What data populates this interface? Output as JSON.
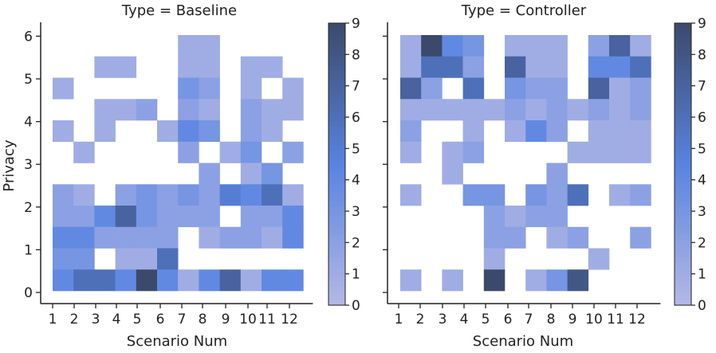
{
  "figure": {
    "ylabel": "Privacy",
    "colormap": {
      "low": "#b3b9e5",
      "mid": "#5883e0",
      "high": "#3b4a6b"
    },
    "cell_nan_color": "#ffffff",
    "axis_color": "#222222"
  },
  "chart_data": [
    {
      "type": "heatmap",
      "title": "Type = Baseline",
      "xlabel": "Scenario Num",
      "ylabel": "Privacy",
      "x_ticks": [
        "1",
        "2",
        "3",
        "4",
        "5",
        "6",
        "7",
        "8",
        "9",
        "10",
        "11",
        "12"
      ],
      "y_ticks": [
        "0",
        "1",
        "2",
        "3",
        "4",
        "5",
        "6"
      ],
      "x_range": [
        1,
        12
      ],
      "y_range": [
        0,
        6.3
      ],
      "colorbar": {
        "min": 0,
        "max": 9,
        "ticks": [
          "0",
          "1",
          "2",
          "3",
          "4",
          "5",
          "6",
          "7",
          "8",
          "9"
        ]
      },
      "note": "Counts binned into ~0.53-wide Privacy rows (12 rows, 0 to 6.3); rows listed top to bottom, columns Scenario 1-12; null = empty bin",
      "grid": [
        [
          null,
          null,
          null,
          null,
          null,
          null,
          1,
          1,
          null,
          null,
          null,
          null
        ],
        [
          null,
          null,
          1,
          1,
          null,
          null,
          1,
          1,
          null,
          1,
          1,
          null
        ],
        [
          1,
          null,
          null,
          null,
          null,
          null,
          3,
          2,
          null,
          1,
          null,
          1
        ],
        [
          null,
          null,
          1,
          1,
          2,
          null,
          2,
          1,
          null,
          2,
          1,
          1
        ],
        [
          1,
          null,
          1,
          null,
          null,
          1,
          4,
          3,
          null,
          2,
          1,
          null
        ],
        [
          null,
          1,
          null,
          null,
          null,
          null,
          2,
          null,
          1,
          3,
          null,
          2
        ],
        [
          null,
          null,
          null,
          null,
          null,
          null,
          null,
          2,
          null,
          1,
          3,
          null
        ],
        [
          2,
          1,
          null,
          2,
          3,
          2,
          3,
          2,
          5,
          4,
          6,
          1
        ],
        [
          2,
          2,
          4,
          7,
          3,
          2,
          2,
          2,
          null,
          2,
          2,
          4
        ],
        [
          4,
          4,
          2,
          2,
          2,
          2,
          null,
          1,
          2,
          2,
          1,
          4
        ],
        [
          3,
          3,
          null,
          1,
          1,
          6,
          null,
          null,
          null,
          null,
          null,
          null
        ],
        [
          4,
          6,
          6,
          4,
          9,
          4,
          1,
          4,
          7,
          1,
          4,
          4
        ]
      ]
    },
    {
      "type": "heatmap",
      "title": "Type = Controller",
      "xlabel": "Scenario Num",
      "ylabel": "",
      "x_ticks": [
        "1",
        "2",
        "3",
        "4",
        "5",
        "6",
        "7",
        "8",
        "9",
        "10",
        "11",
        "12"
      ],
      "y_ticks": [
        "0",
        "1",
        "2",
        "3",
        "4",
        "5",
        "6"
      ],
      "x_range": [
        1,
        12
      ],
      "y_range": [
        0,
        6.3
      ],
      "colorbar": {
        "min": 0,
        "max": 9,
        "ticks": [
          "0",
          "1",
          "2",
          "3",
          "4",
          "5",
          "6",
          "7",
          "8",
          "9"
        ]
      },
      "note": "Same binning as Baseline panel; tick labels on the y axis are hidden (shared y)",
      "grid": [
        [
          1,
          9,
          4,
          3,
          null,
          1,
          1,
          1,
          null,
          2,
          7,
          1
        ],
        [
          1,
          6,
          6,
          2,
          null,
          7,
          1,
          1,
          null,
          4,
          4,
          6
        ],
        [
          7,
          2,
          null,
          6,
          null,
          3,
          2,
          2,
          null,
          7,
          1,
          2
        ],
        [
          1,
          1,
          1,
          1,
          1,
          2,
          1,
          2,
          1,
          2,
          1,
          2
        ],
        [
          2,
          null,
          null,
          1,
          null,
          1,
          4,
          2,
          null,
          1,
          1,
          1
        ],
        [
          1,
          null,
          1,
          2,
          null,
          null,
          null,
          null,
          1,
          1,
          1,
          1
        ],
        [
          null,
          null,
          1,
          null,
          null,
          null,
          null,
          2,
          null,
          null,
          null,
          null
        ],
        [
          1,
          null,
          null,
          3,
          3,
          null,
          3,
          2,
          6,
          null,
          1,
          2
        ],
        [
          null,
          null,
          null,
          null,
          2,
          1,
          2,
          2,
          null,
          null,
          null,
          null
        ],
        [
          null,
          null,
          null,
          null,
          2,
          2,
          null,
          1,
          2,
          null,
          null,
          2
        ],
        [
          null,
          null,
          null,
          null,
          1,
          null,
          null,
          null,
          null,
          1,
          null,
          null
        ],
        [
          1,
          null,
          1,
          null,
          9,
          null,
          1,
          3,
          8,
          null,
          null,
          null
        ]
      ]
    }
  ]
}
